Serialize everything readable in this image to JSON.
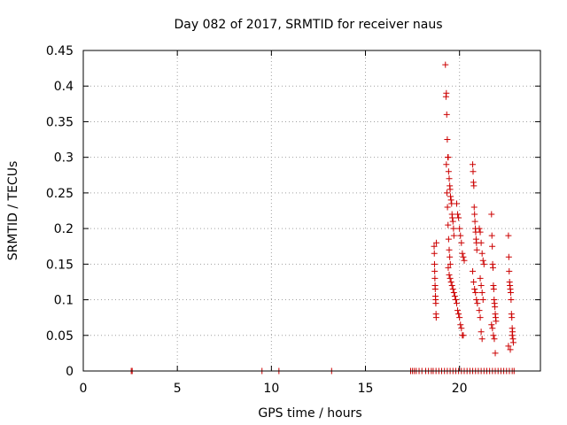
{
  "colors": {
    "marker": "#cc0000",
    "axis": "#000000",
    "grid": "#a0a0a0",
    "background": "#ffffff"
  },
  "chart_data": {
    "type": "scatter",
    "title": "Day 082 of 2017, SRMTID for receiver naus",
    "xlabel": "GPS time / hours",
    "ylabel": "SRMTID / TECUs",
    "xlim": [
      0,
      24.3
    ],
    "ylim": [
      0,
      0.45
    ],
    "x_ticks": [
      0,
      5,
      10,
      15,
      20
    ],
    "y_ticks": [
      0,
      0.05,
      0.1,
      0.15,
      0.2,
      0.25,
      0.3,
      0.35,
      0.4,
      0.45
    ],
    "grid": true,
    "marker": "plus",
    "series": [
      {
        "name": "SRMTID",
        "x": [
          2.55,
          2.6,
          9.5,
          10.4,
          13.2,
          17.4,
          17.5,
          17.6,
          17.7,
          17.85,
          18.0,
          18.2,
          18.35,
          18.5,
          18.6,
          18.75,
          18.9,
          19.05,
          19.2,
          19.35,
          19.5,
          19.65,
          19.8,
          19.95,
          20.1,
          20.25,
          20.4,
          20.55,
          20.7,
          20.85,
          21.0,
          21.15,
          21.3,
          21.45,
          21.6,
          21.75,
          21.9,
          22.05,
          22.2,
          22.35,
          22.5,
          22.65,
          22.8,
          22.9,
          18.65,
          18.66,
          18.67,
          18.68,
          18.69,
          18.7,
          18.71,
          18.72,
          18.73,
          18.74,
          18.75,
          18.76,
          18.77,
          19.25,
          19.28,
          19.3,
          19.32,
          19.35,
          19.38,
          19.4,
          19.42,
          19.45,
          19.48,
          19.5,
          19.52,
          19.55,
          19.58,
          19.6,
          19.62,
          19.65,
          19.68,
          19.7,
          19.3,
          19.33,
          19.36,
          19.39,
          19.42,
          19.45,
          19.48,
          19.51,
          19.4,
          19.45,
          19.5,
          19.55,
          19.6,
          19.65,
          19.7,
          19.75,
          19.8,
          19.85,
          19.9,
          19.95,
          20.0,
          20.05,
          20.1,
          20.15,
          20.2,
          19.85,
          19.9,
          19.95,
          20.0,
          20.05,
          20.1,
          20.15,
          20.2,
          20.25,
          20.7,
          20.72,
          20.74,
          20.76,
          20.78,
          20.8,
          20.82,
          20.84,
          20.86,
          20.88,
          20.9,
          20.92,
          20.7,
          20.75,
          20.8,
          20.85,
          20.9,
          20.95,
          21.05,
          21.1,
          21.15,
          21.2,
          21.25,
          21.3,
          21.1,
          21.15,
          21.2,
          21.25,
          21.05,
          21.1,
          21.15,
          21.2,
          21.7,
          21.72,
          21.74,
          21.76,
          21.78,
          21.8,
          21.82,
          21.84,
          21.86,
          21.88,
          21.9,
          21.92,
          21.94,
          21.7,
          21.75,
          21.8,
          21.85,
          21.9,
          22.6,
          22.62,
          22.64,
          22.66,
          22.68,
          22.7,
          22.72,
          22.74,
          22.76,
          22.78,
          22.8,
          22.82,
          22.84,
          22.86,
          22.6,
          22.7,
          22.8
        ],
        "y": [
          0,
          0,
          0,
          0,
          0,
          0,
          0,
          0,
          0,
          0,
          0,
          0,
          0,
          0,
          0,
          0,
          0,
          0,
          0,
          0,
          0,
          0,
          0,
          0,
          0,
          0,
          0,
          0,
          0,
          0,
          0,
          0,
          0,
          0,
          0,
          0,
          0,
          0,
          0,
          0,
          0,
          0,
          0,
          0,
          0.175,
          0.165,
          0.15,
          0.14,
          0.13,
          0.12,
          0.115,
          0.105,
          0.1,
          0.095,
          0.08,
          0.075,
          0.18,
          0.43,
          0.385,
          0.39,
          0.36,
          0.325,
          0.3,
          0.3,
          0.28,
          0.27,
          0.26,
          0.255,
          0.245,
          0.24,
          0.235,
          0.22,
          0.215,
          0.21,
          0.2,
          0.19,
          0.29,
          0.25,
          0.23,
          0.205,
          0.185,
          0.17,
          0.16,
          0.15,
          0.145,
          0.135,
          0.13,
          0.125,
          0.12,
          0.115,
          0.11,
          0.105,
          0.1,
          0.095,
          0.085,
          0.08,
          0.075,
          0.065,
          0.06,
          0.05,
          0.05,
          0.235,
          0.22,
          0.215,
          0.2,
          0.19,
          0.18,
          0.165,
          0.16,
          0.155,
          0.29,
          0.28,
          0.265,
          0.26,
          0.23,
          0.22,
          0.21,
          0.2,
          0.195,
          0.185,
          0.18,
          0.17,
          0.14,
          0.125,
          0.115,
          0.11,
          0.1,
          0.095,
          0.2,
          0.195,
          0.18,
          0.165,
          0.155,
          0.15,
          0.13,
          0.12,
          0.11,
          0.1,
          0.085,
          0.075,
          0.055,
          0.045,
          0.22,
          0.19,
          0.175,
          0.15,
          0.145,
          0.12,
          0.115,
          0.1,
          0.095,
          0.09,
          0.08,
          0.075,
          0.07,
          0.065,
          0.06,
          0.05,
          0.045,
          0.025,
          0.19,
          0.16,
          0.14,
          0.125,
          0.12,
          0.115,
          0.11,
          0.1,
          0.08,
          0.075,
          0.06,
          0.055,
          0.045,
          0.04,
          0.035,
          0.03,
          0.05
        ]
      }
    ]
  }
}
